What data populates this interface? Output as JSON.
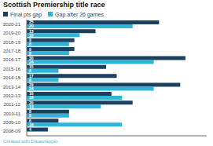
{
  "chart_data": {
    "type": "bar",
    "orientation": "horizontal",
    "title": "Scottish Premiership title race",
    "categories": [
      "2020-21",
      "2019-20",
      "2018-19",
      "2017-18",
      "2016-17",
      "2015-16",
      "2014-15",
      "2013-14",
      "2012-13",
      "2011-12",
      "2010-11",
      "2009-10",
      "2008-09"
    ],
    "series": [
      {
        "name": "Final pts gap",
        "color": "#1b4060",
        "values": [
          25,
          13,
          9,
          9,
          30,
          15,
          17,
          29,
          16,
          20,
          8,
          6,
          4
        ]
      },
      {
        "name": "Gap after 26 games",
        "color": "#2db4d8",
        "values": [
          20,
          10,
          8,
          8,
          24,
          6,
          6,
          24,
          18,
          14,
          8,
          18,
          0
        ],
        "value_labels": [
          "20",
          "10",
          "8",
          "8",
          "24",
          "6",
          "6",
          "24",
          "18",
          "14",
          "8",
          "18",
          null
        ]
      }
    ],
    "xlim": [
      0,
      34
    ],
    "data_labels": true,
    "tick_labels": "y",
    "grid": false,
    "legend": "upper left",
    "annotations": [
      {
        "text": "Created with Datawrapper",
        "color": "#4ab8d8"
      }
    ]
  }
}
